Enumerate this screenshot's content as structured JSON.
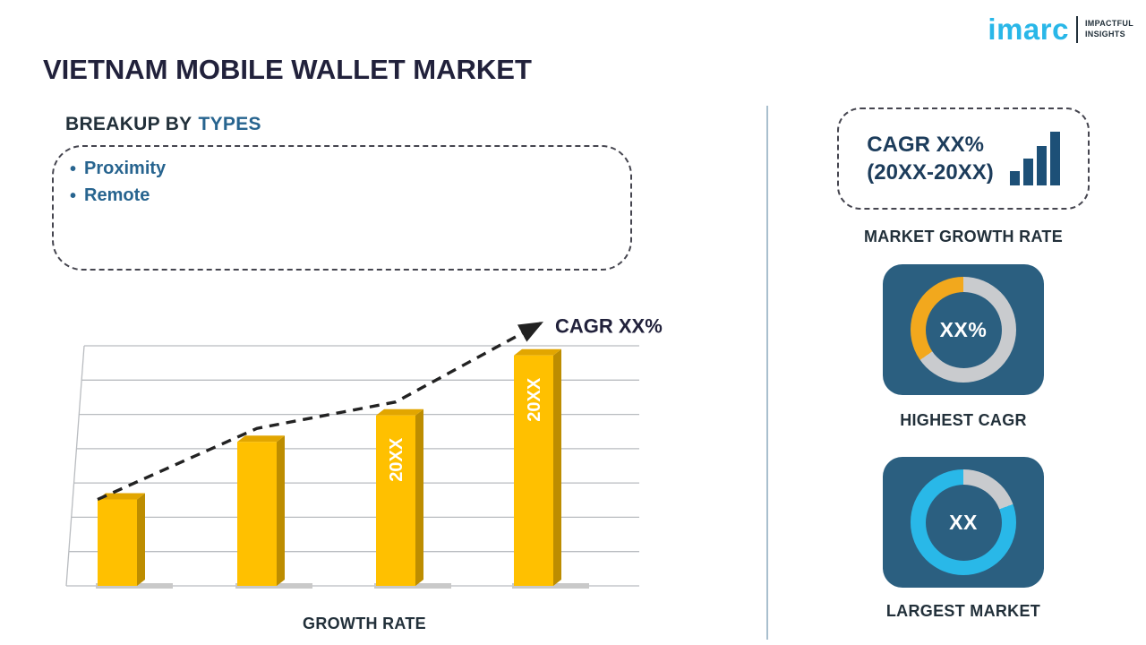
{
  "header": {
    "title": "VIETNAM MOBILE WALLET MARKET",
    "logo": {
      "brand": "imarc",
      "tagline1": "IMPACTFUL",
      "tagline2": "INSIGHTS"
    }
  },
  "breakup": {
    "heading_prefix": "BREAKUP BY",
    "heading_highlight": "TYPES",
    "bullet": "•",
    "items": [
      "Proximity",
      "Remote"
    ]
  },
  "chart_data": {
    "type": "bar",
    "title": "",
    "categories": [
      "",
      "",
      "20XX",
      "20XX"
    ],
    "values": [
      36,
      60,
      71,
      96
    ],
    "ylim": [
      0,
      100
    ],
    "gridlines": 8,
    "grid": true,
    "legend": false,
    "xlabel": "GROWTH RATE",
    "ylabel": "",
    "trend_label": "CAGR XX%",
    "bar_color": "#FFC000",
    "bar_color_side": "#BD8D00",
    "bar_color_top": "#E2A600",
    "trend_color": "#222222",
    "gridline_color": "#B9BCC0",
    "bar_label_color": "#FFFFFF"
  },
  "sidebar": {
    "cagr_card": {
      "line1": "CAGR XX%",
      "line2": "(20XX-20XX)"
    },
    "market_growth_label": "MARKET GROWTH RATE",
    "highest_cagr": {
      "value": "XX%",
      "label": "HIGHEST CAGR",
      "ring": {
        "base": "#C9CBCE",
        "accent": "#F2A81D",
        "from": 235,
        "to": 360
      }
    },
    "largest_market": {
      "value": "XX",
      "label": "LARGEST MARKET",
      "ring": {
        "base": "#29B8E8",
        "accent": "#C9CBCE",
        "from": 0,
        "to": 70
      }
    }
  },
  "colors": {
    "brand_cyan": "#29B7E8",
    "title_navy": "#21213B",
    "accent_blue": "#27648F",
    "label_navy": "#22303A",
    "cagr_text": "#1C3C5B",
    "card_blue": "#2B5F80",
    "donut_orange": "#F2A81D",
    "donut_gray": "#C9CBCE",
    "donut_cyan": "#29B8E8",
    "divider": "#A9BFCE",
    "dashed_border": "#45454F",
    "icon_navy": "#1D5077"
  }
}
